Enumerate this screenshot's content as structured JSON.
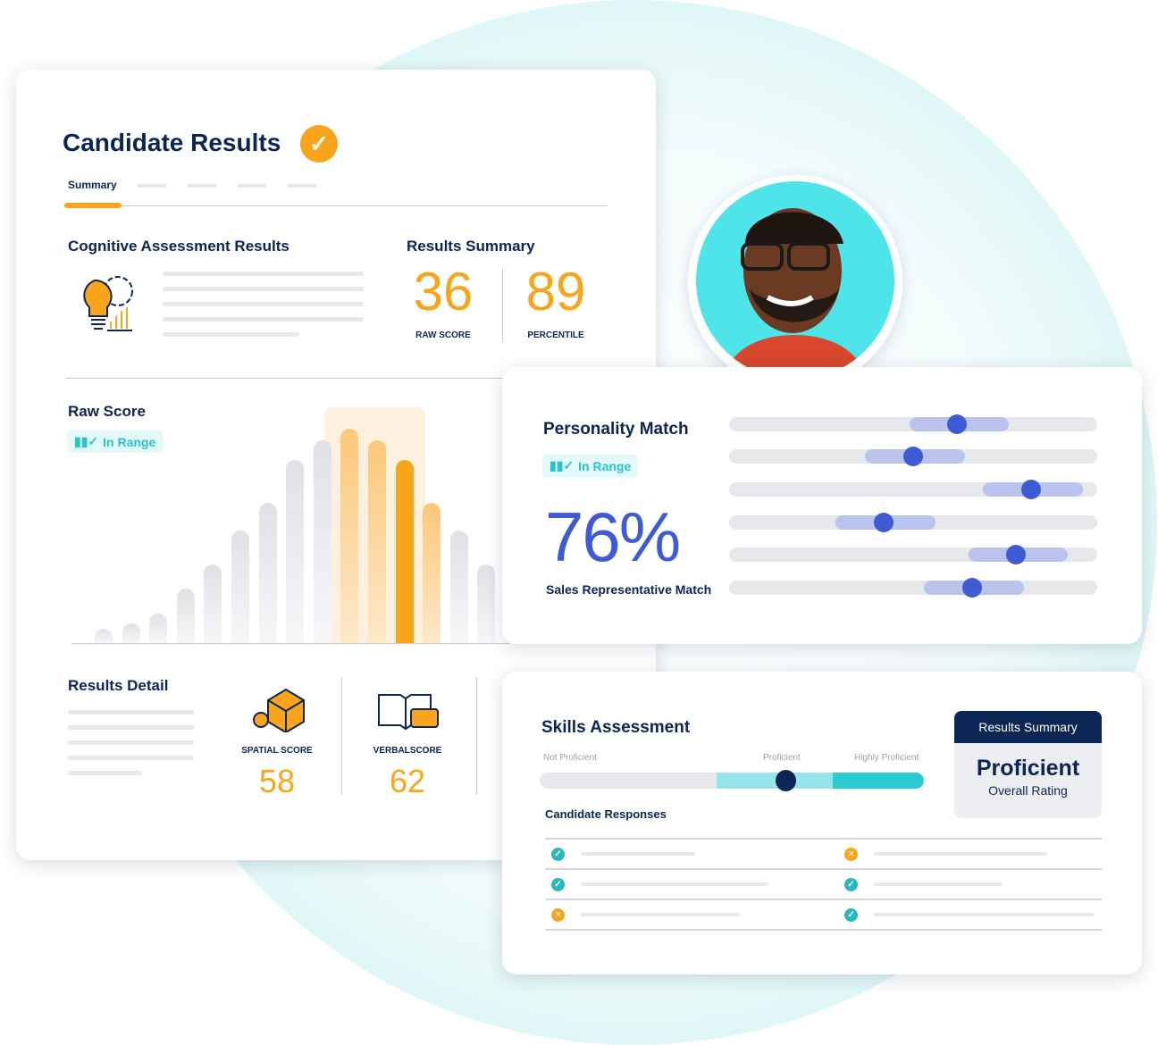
{
  "candidate_card": {
    "title": "Candidate Results",
    "tabs": [
      {
        "label": "Summary",
        "active": true
      }
    ],
    "cognitive_title": "Cognitive Assessment Results",
    "results_summary_title": "Results Summary",
    "raw_score": "36",
    "raw_score_label": "RAW SCORE",
    "percentile": "89",
    "percentile_label": "PERCENTILE",
    "raw_score_chart_title": "Raw Score",
    "in_range": "In Range",
    "results_detail_title": "Results Detail",
    "spatial_label": "SPATIAL SCORE",
    "spatial_score": "58",
    "verbal_label": "VERBALSCORE",
    "verbal_score": "62"
  },
  "personality_card": {
    "title": "Personality Match",
    "in_range": "In Range",
    "match_percent": "76%",
    "match_label": "Sales Representative Match",
    "trait_levels_percent": [
      62,
      50,
      82,
      42,
      78,
      66
    ]
  },
  "skills_card": {
    "title": "Skills Assessment",
    "scale": [
      "Not Proficient",
      "Proficient",
      "Highly Proficient"
    ],
    "level_percent": 64,
    "summary_header": "Results Summary",
    "rating": "Proficient",
    "rating_label": "Overall Rating",
    "responses_title": "Candidate Responses",
    "responses": [
      [
        "correct",
        "incorrect"
      ],
      [
        "correct",
        "correct"
      ],
      [
        "incorrect",
        "correct"
      ]
    ]
  },
  "colors": {
    "accent_orange": "#f8a51b",
    "navy": "#0b2554",
    "indigo": "#3f5bd4",
    "teal": "#2cc3c8"
  }
}
